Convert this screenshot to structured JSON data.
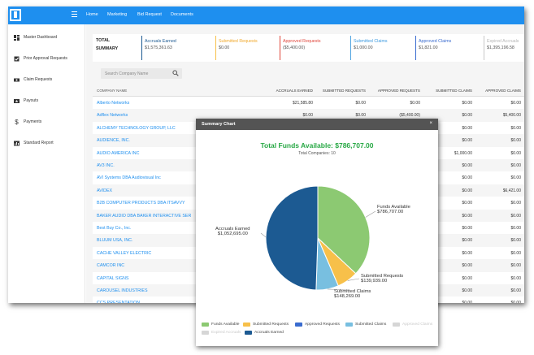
{
  "nav": {
    "home": "Home",
    "marketing": "Marketing",
    "bid_request": "Bid Request",
    "documents": "Documents"
  },
  "sidebar": {
    "items": [
      {
        "label": "Master Dashboard",
        "icon": "dashboard-icon"
      },
      {
        "label": "Prior Approval Requests",
        "icon": "checkbox-icon"
      },
      {
        "label": "Claim Requests",
        "icon": "ticket-icon"
      },
      {
        "label": "Payouts",
        "icon": "star-icon"
      },
      {
        "label": "Payments",
        "icon": "dollar-icon"
      },
      {
        "label": "Standard Report",
        "icon": "report-icon"
      }
    ]
  },
  "summary": {
    "total_label": "TOTAL\nSUMMARY",
    "cards": [
      {
        "title": "Accruals Earned",
        "value": "$1,575,361.63",
        "color": "#1c5a92"
      },
      {
        "title": "Submitted Requests",
        "value": "$0.00",
        "color": "#f7c04a"
      },
      {
        "title": "Approved Requests",
        "value": "($5,400.00)",
        "color": "#e0463b"
      },
      {
        "title": "Submitted Claims",
        "value": "$1,000.00",
        "color": "#4fa3e0"
      },
      {
        "title": "Approved Claims",
        "value": "$1,821.00",
        "color": "#3a6ccf"
      },
      {
        "title": "Expired Accruals",
        "value": "$1,395,196.58",
        "color": "#c8c8c8"
      }
    ]
  },
  "search": {
    "placeholder": "Search Company Name"
  },
  "table": {
    "headers": [
      "COMPANY NAME",
      "ACCRUALS EARNED",
      "SUBMITTED REQUESTS",
      "APPROVED REQUESTS",
      "SUBMITTED CLAIMS",
      "APPROVED CLAIMS"
    ],
    "rows": [
      {
        "name": "Alberto Networks",
        "accruals": "$21,585.80",
        "sub_req": "$0.00",
        "app_req": "$0.00",
        "sub_claims": "$0.00",
        "app_claims": "$0.00"
      },
      {
        "name": "Adflex Networks",
        "accruals": "$0.00",
        "sub_req": "$0.00",
        "app_req": "($5,400.00)",
        "sub_claims": "$0.00",
        "app_claims": "$5,400.00"
      },
      {
        "name": "ALCHEMY TECHNOLOGY GROUP, LLC",
        "accruals": "",
        "sub_req": "",
        "app_req": "",
        "sub_claims": "$0.00",
        "app_claims": "$0.00"
      },
      {
        "name": "AUDIENCE, INC.",
        "accruals": "",
        "sub_req": "",
        "app_req": "",
        "sub_claims": "$0.00",
        "app_claims": "$0.00"
      },
      {
        "name": "AUDIO AMERICA INC",
        "accruals": "",
        "sub_req": "",
        "app_req": "",
        "sub_claims": "$1,000.00",
        "app_claims": "$0.00"
      },
      {
        "name": "AV3 INC.",
        "accruals": "",
        "sub_req": "",
        "app_req": "",
        "sub_claims": "$0.00",
        "app_claims": "$0.00"
      },
      {
        "name": "AVI Systems DBA Audiovisual Inc",
        "accruals": "",
        "sub_req": "",
        "app_req": "",
        "sub_claims": "$0.00",
        "app_claims": "$0.00"
      },
      {
        "name": "AVIDEX",
        "accruals": "",
        "sub_req": "",
        "app_req": "",
        "sub_claims": "$0.00",
        "app_claims": "$6,421.00"
      },
      {
        "name": "B2B COMPUTER PRODUCTS DBA ITSAVVY",
        "accruals": "",
        "sub_req": "",
        "app_req": "",
        "sub_claims": "$0.00",
        "app_claims": "$0.00"
      },
      {
        "name": "BAKER AUDIO DBA BAKER INTERACTIVE SER",
        "accruals": "",
        "sub_req": "",
        "app_req": "",
        "sub_claims": "$0.00",
        "app_claims": "$0.00"
      },
      {
        "name": "Best Buy Co., Inc.",
        "accruals": "",
        "sub_req": "",
        "app_req": "",
        "sub_claims": "$0.00",
        "app_claims": "$0.00"
      },
      {
        "name": "BLUUM USA, INC.",
        "accruals": "",
        "sub_req": "",
        "app_req": "",
        "sub_claims": "$0.00",
        "app_claims": "$0.00"
      },
      {
        "name": "CACHE VALLEY ELECTRIC",
        "accruals": "",
        "sub_req": "",
        "app_req": "",
        "sub_claims": "$0.00",
        "app_claims": "$0.00"
      },
      {
        "name": "CAMCOR INC",
        "accruals": "",
        "sub_req": "",
        "app_req": "",
        "sub_claims": "$0.00",
        "app_claims": "$0.00"
      },
      {
        "name": "CAPITAL SIGNS",
        "accruals": "",
        "sub_req": "",
        "app_req": "",
        "sub_claims": "$0.00",
        "app_claims": "$0.00"
      },
      {
        "name": "CAROUSEL INDUSTRIES",
        "accruals": "",
        "sub_req": "",
        "app_req": "",
        "sub_claims": "$0.00",
        "app_claims": "$0.00"
      },
      {
        "name": "CCS PRESENTATION",
        "accruals": "",
        "sub_req": "",
        "app_req": "",
        "sub_claims": "$0.00",
        "app_claims": "$0.00"
      }
    ]
  },
  "modal": {
    "title": "Summary Chart",
    "close": "×",
    "chart_title": "Total Funds Available: $786,707.00",
    "chart_subtitle": "Total Companies: 10"
  },
  "chart_data": {
    "type": "pie",
    "title": "Total Funds Available: $786,707.00",
    "subtitle": "Total Companies: 10",
    "slices": [
      {
        "name": "Funds Available",
        "value": 786707.0,
        "label": "$786,707.00",
        "color": "#8cc972"
      },
      {
        "name": "Submitted Requests",
        "value": 139939.0,
        "label": "$139,939.00",
        "color": "#f7c04a"
      },
      {
        "name": "Submitted Claims",
        "value": 148269.0,
        "label": "$148,269.00",
        "color": "#78bfe0"
      },
      {
        "name": "Accruals Earned",
        "value": 1052695.0,
        "label": "$1,052,695.00",
        "color": "#1c5a92"
      }
    ],
    "legend": [
      {
        "name": "Funds Available",
        "color": "#8cc972",
        "enabled": true
      },
      {
        "name": "Submitted Requests",
        "color": "#f7c04a",
        "enabled": true
      },
      {
        "name": "Approved Requests",
        "color": "#3a6ccf",
        "enabled": true
      },
      {
        "name": "Submitted Claims",
        "color": "#78bfe0",
        "enabled": true
      },
      {
        "name": "Approved Claims",
        "color": "#d6d6d6",
        "enabled": false
      },
      {
        "name": "Expired Accruals",
        "color": "#d6d6d6",
        "enabled": false
      },
      {
        "name": "Accruals Earned",
        "color": "#1c5a92",
        "enabled": true
      }
    ],
    "legend_position": "bottom"
  }
}
